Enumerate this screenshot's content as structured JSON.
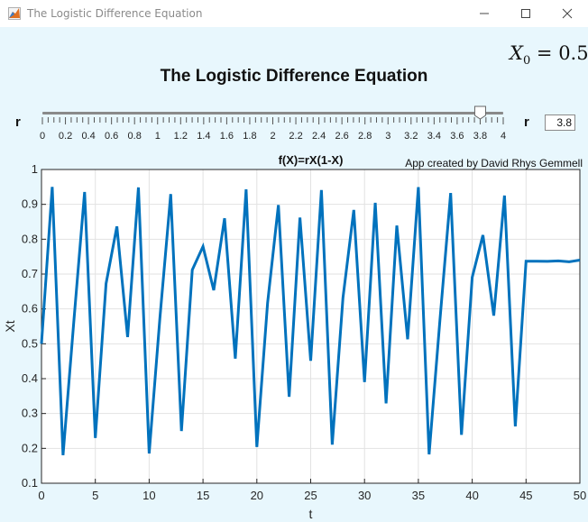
{
  "window": {
    "title": "The Logistic Difference Equation"
  },
  "header": {
    "x0_symbol": "X",
    "x0_sub": "0",
    "x0_value": "= 0.5",
    "title": "The Logistic Difference Equation"
  },
  "slider": {
    "label": "r",
    "value": 3.8,
    "min": 0,
    "max": 4,
    "tick_labels": [
      "0",
      "0.2",
      "0.4",
      "0.6",
      "0.8",
      "1",
      "1.2",
      "1.4",
      "1.6",
      "1.8",
      "2",
      "2.2",
      "2.4",
      "2.6",
      "2.8",
      "3",
      "3.2",
      "3.4",
      "3.6",
      "3.8",
      "4"
    ]
  },
  "r_field": {
    "label": "r",
    "value": "3.8"
  },
  "icons": {
    "app": "matlab-logo-icon",
    "minimize": "minimize-icon",
    "maximize": "maximize-icon",
    "close": "close-icon"
  },
  "chart_data": {
    "type": "line",
    "title": "f(X)=rX(1-X)",
    "annotation": "App created by David Rhys Gemmell",
    "xlabel": "t",
    "ylabel": "Xt",
    "xlim": [
      0,
      50
    ],
    "ylim": [
      0.1,
      1
    ],
    "grid": true,
    "line_color": "#0072bd",
    "x_ticks": [
      "0",
      "5",
      "10",
      "15",
      "20",
      "25",
      "30",
      "35",
      "40",
      "45",
      "50"
    ],
    "y_ticks": [
      "0.1",
      "0.2",
      "0.3",
      "0.4",
      "0.5",
      "0.6",
      "0.7",
      "0.8",
      "0.9",
      "1"
    ],
    "x": [
      0,
      1,
      2,
      3,
      4,
      5,
      6,
      7,
      8,
      9,
      10,
      11,
      12,
      13,
      14,
      15,
      16,
      17,
      18,
      19,
      20,
      21,
      22,
      23,
      24,
      25,
      26,
      27,
      28,
      29,
      30,
      31,
      32,
      33,
      34,
      35,
      36,
      37,
      38,
      39,
      40,
      41,
      42,
      43,
      44,
      45,
      46,
      47,
      48,
      49,
      50
    ],
    "y": [
      0.5,
      0.95,
      0.1805,
      0.5621,
      0.9353,
      0.2299,
      0.6727,
      0.8366,
      0.5193,
      0.9486,
      0.1854,
      0.5739,
      0.9293,
      0.2497,
      0.712,
      0.7792,
      0.6538,
      0.8601,
      0.4574,
      0.9431,
      0.2039,
      0.6169,
      0.8981,
      0.348,
      0.8622,
      0.4515,
      0.9411,
      0.2107,
      0.632,
      0.8838,
      0.3902,
      0.9042,
      0.3292,
      0.8391,
      0.513,
      0.9493,
      0.1828,
      0.5676,
      0.9326,
      0.2388,
      0.6908,
      0.8117,
      0.5808,
      0.9252,
      0.2631,
      0.7367,
      0.7371,
      0.7364,
      0.7377,
      0.7352,
      0.7402
    ]
  }
}
